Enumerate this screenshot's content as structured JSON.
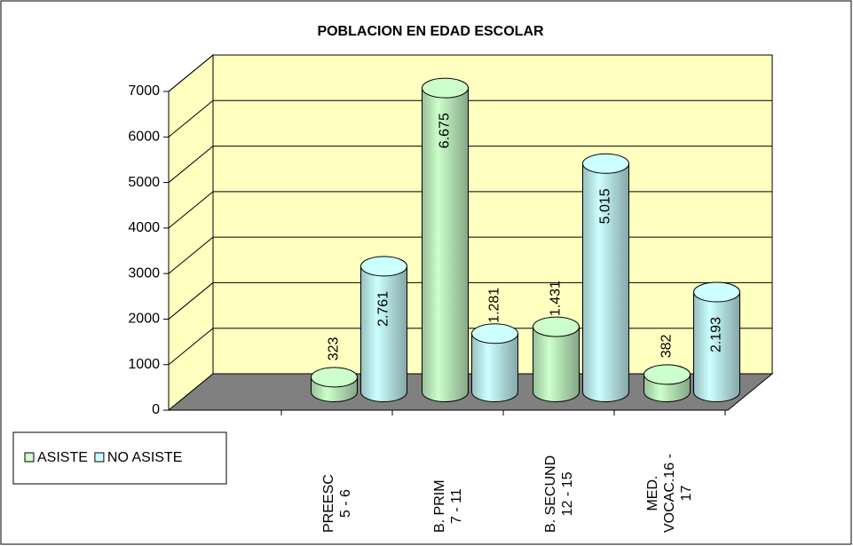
{
  "chart_data": {
    "type": "bar3d",
    "title": "POBLACION EN EDAD ESCOLAR",
    "categories": [
      "PREESC\n5 - 6",
      "B. PRIM\n7 - 11",
      "B. SECUND\n12 - 15",
      "MED.\nVOCAC.16 -\n17"
    ],
    "series": [
      {
        "name": "ASISTE",
        "color": "#ccffcc",
        "values": [
          323,
          6675,
          1431,
          382
        ],
        "value_labels": [
          "323",
          "6.675",
          "1.431",
          "382"
        ]
      },
      {
        "name": "NO ASISTE",
        "color": "#ccffff",
        "values": [
          2761,
          1281,
          5015,
          2193
        ],
        "value_labels": [
          "2.761",
          "1.281",
          "5.015",
          "2.193"
        ]
      }
    ],
    "ylim": [
      0,
      7000
    ],
    "yticks": [
      0,
      1000,
      2000,
      3000,
      4000,
      5000,
      6000,
      7000
    ],
    "grid": true
  }
}
